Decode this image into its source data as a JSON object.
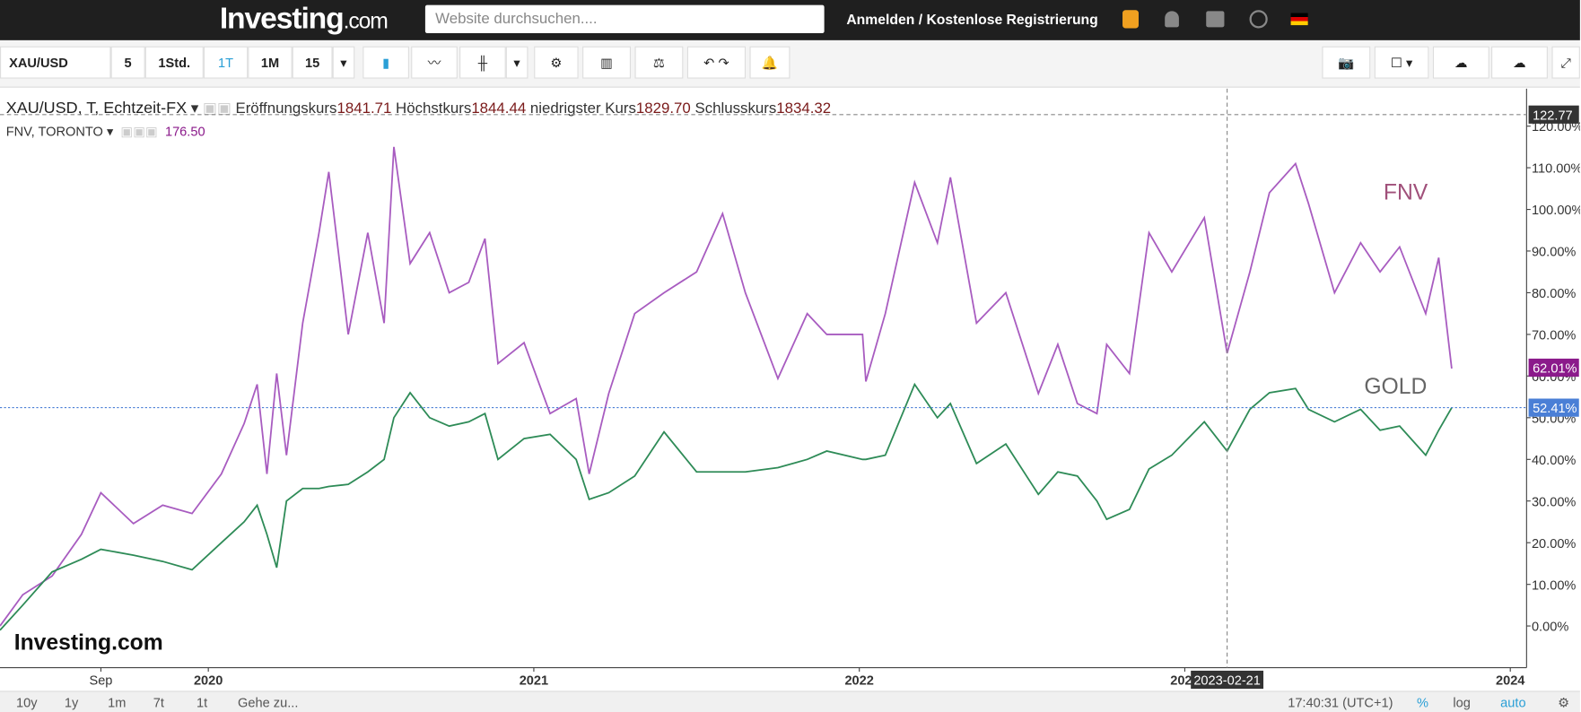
{
  "header": {
    "logo": "Investing",
    "logo_suffix": ".com",
    "search_placeholder": "Website durchsuchen....",
    "login": "Anmelden",
    "separator": "/",
    "register": "Kostenlose Registrierung"
  },
  "toolbar": {
    "symbol": "XAU/USD",
    "intervals": [
      "5",
      "1Std.",
      "1T",
      "1M",
      "15"
    ]
  },
  "legend": {
    "main": {
      "symbol": "XAU/USD, T, Echtzeit-FX",
      "items": [
        {
          "label": "Eröffnungskurs",
          "value": "1841.71"
        },
        {
          "label": "Höchstkurs",
          "value": "1844.44"
        },
        {
          "label": "niedrigster Kurs",
          "value": "1829.70"
        },
        {
          "label": "Schlusskurs",
          "value": "1834.32"
        }
      ]
    },
    "compare": {
      "symbol": "FNV, TORONTO",
      "value": "176.50"
    }
  },
  "chart_data": {
    "type": "line",
    "watermark": "Investing.com",
    "x": [
      2019.36,
      2019.43,
      2019.52,
      2019.61,
      2019.67,
      2019.77,
      2019.86,
      2019.95,
      2020.04,
      2020.11,
      2020.15,
      2020.18,
      2020.21,
      2020.24,
      2020.29,
      2020.34,
      2020.37,
      2020.43,
      2020.49,
      2020.54,
      2020.57,
      2020.62,
      2020.68,
      2020.74,
      2020.8,
      2020.85,
      2020.89,
      2020.97,
      2021.05,
      2021.13,
      2021.17,
      2021.23,
      2021.31,
      2021.4,
      2021.5,
      2021.58,
      2021.65,
      2021.75,
      2021.84,
      2021.9,
      2022.01,
      2022.02,
      2022.08,
      2022.17,
      2022.24,
      2022.28,
      2022.36,
      2022.45,
      2022.55,
      2022.61,
      2022.67,
      2022.73,
      2022.76,
      2022.83,
      2022.89,
      2022.96,
      2023.06,
      2023.13,
      2023.2,
      2023.26,
      2023.34,
      2023.38,
      2023.46,
      2023.54,
      2023.6,
      2023.66,
      2023.74,
      2023.78,
      2023.82
    ],
    "series": [
      {
        "name": "FNV",
        "color": "#a85cc0",
        "label_color": "#a0507a",
        "values": [
          0,
          7.5,
          12,
          22,
          32,
          24.6,
          29,
          27,
          36.5,
          48.6,
          58,
          36.5,
          60.6,
          41,
          72.7,
          94.4,
          109,
          70,
          94.4,
          72.7,
          115,
          87,
          94.4,
          80,
          82.5,
          93,
          63,
          68,
          51,
          54.6,
          36.5,
          55.8,
          75,
          80,
          85,
          99,
          80,
          59.4,
          75,
          70,
          70,
          58.7,
          75,
          106.5,
          92,
          107.7,
          72.7,
          80,
          55.8,
          67.6,
          53.4,
          51,
          67.6,
          60.6,
          94.4,
          85,
          98,
          65.5,
          85,
          104,
          111,
          101.4,
          80,
          92,
          85,
          91,
          75,
          88.4,
          61.8
        ]
      },
      {
        "name": "GOLD",
        "color": "#2e8b57",
        "label_color": "#666666",
        "values": [
          -1,
          5,
          13,
          16,
          18.4,
          17,
          15.5,
          13.5,
          20,
          25,
          29,
          22,
          14,
          30,
          33,
          33,
          33.5,
          34,
          37,
          40,
          50,
          56,
          50,
          48,
          49,
          51,
          40,
          45,
          46,
          40,
          30.4,
          32,
          36,
          46.6,
          37,
          37,
          37,
          38,
          40,
          42,
          40,
          40,
          41,
          58,
          50,
          53.4,
          39,
          43.7,
          31.6,
          37,
          36,
          30,
          25.6,
          28,
          37.7,
          41,
          49,
          42,
          52,
          56,
          57,
          52,
          49,
          52,
          47,
          48,
          41,
          47,
          52.4
        ]
      }
    ],
    "xlim": [
      2019.36,
      2024.05
    ],
    "xticks": [
      {
        "value": 2019.67,
        "label": "Sep"
      },
      2020,
      2021,
      2022,
      2023,
      2024
    ],
    "ylim": [
      -10,
      129
    ],
    "yticks": [
      {
        "value": 0,
        "label": "0.00%"
      },
      {
        "value": 10,
        "label": "10.00%"
      },
      {
        "value": 20,
        "label": "20.00%"
      },
      {
        "value": 30,
        "label": "30.00%"
      },
      {
        "value": 40,
        "label": "40.00%"
      },
      {
        "value": 50,
        "label": "50.00%"
      },
      {
        "value": 60,
        "label": "60.00%"
      },
      {
        "value": 70,
        "label": "70.00%"
      },
      {
        "value": 80,
        "label": "80.00%"
      },
      {
        "value": 90,
        "label": "90.00%"
      },
      {
        "value": 100,
        "label": "100.00%"
      },
      {
        "value": 110,
        "label": "110.00%"
      },
      {
        "value": 120,
        "label": "120.00%"
      }
    ],
    "price_tags": [
      {
        "value": 62.01,
        "label": "62.01%",
        "color": "#8b1a8b"
      },
      {
        "value": 52.41,
        "label": "52.41%",
        "color": "#4a7fd6"
      }
    ],
    "crosshair": {
      "x": 2023.13,
      "x_label": "2023-02-21",
      "y": 122.77
    }
  },
  "footer": {
    "ranges": [
      "10y",
      "1y",
      "1m",
      "7t",
      "1t"
    ],
    "goto": "Gehe zu...",
    "time": "17:40:31 (UTC+1)",
    "percent": "%",
    "log": "log",
    "auto": "auto"
  }
}
